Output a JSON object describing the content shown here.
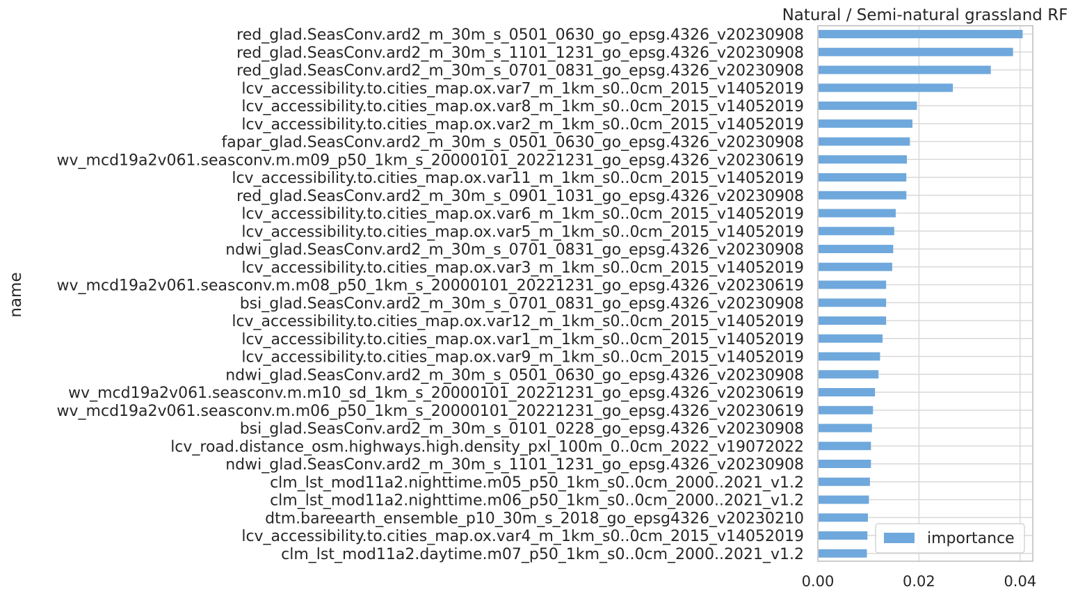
{
  "chart_data": {
    "type": "bar",
    "orientation": "horizontal",
    "title": "Natural / Semi-natural grassland RF",
    "xlabel": "",
    "ylabel": "name",
    "xlim": [
      0,
      0.0425
    ],
    "xticks": [
      "0.00",
      "0.02",
      "0.04"
    ],
    "grid": true,
    "legend_position": "bottom-right",
    "bar_color": "#6fa8dc",
    "series": [
      {
        "name": "importance",
        "categories": [
          "red_glad.SeasConv.ard2_m_30m_s_0501_0630_go_epsg.4326_v20230908",
          "red_glad.SeasConv.ard2_m_30m_s_1101_1231_go_epsg.4326_v20230908",
          "red_glad.SeasConv.ard2_m_30m_s_0701_0831_go_epsg.4326_v20230908",
          "lcv_accessibility.to.cities_map.ox.var7_m_1km_s0..0cm_2015_v14052019",
          "lcv_accessibility.to.cities_map.ox.var8_m_1km_s0..0cm_2015_v14052019",
          "lcv_accessibility.to.cities_map.ox.var2_m_1km_s0..0cm_2015_v14052019",
          "fapar_glad.SeasConv.ard2_m_30m_s_0501_0630_go_epsg.4326_v20230908",
          "wv_mcd19a2v061.seasconv.m.m09_p50_1km_s_20000101_20221231_go_epsg.4326_v20230619",
          "lcv_accessibility.to.cities_map.ox.var11_m_1km_s0..0cm_2015_v14052019",
          "red_glad.SeasConv.ard2_m_30m_s_0901_1031_go_epsg.4326_v20230908",
          "lcv_accessibility.to.cities_map.ox.var6_m_1km_s0..0cm_2015_v14052019",
          "lcv_accessibility.to.cities_map.ox.var5_m_1km_s0..0cm_2015_v14052019",
          "ndwi_glad.SeasConv.ard2_m_30m_s_0701_0831_go_epsg.4326_v20230908",
          "lcv_accessibility.to.cities_map.ox.var3_m_1km_s0..0cm_2015_v14052019",
          "wv_mcd19a2v061.seasconv.m.m08_p50_1km_s_20000101_20221231_go_epsg.4326_v20230619",
          "bsi_glad.SeasConv.ard2_m_30m_s_0701_0831_go_epsg.4326_v20230908",
          "lcv_accessibility.to.cities_map.ox.var12_m_1km_s0..0cm_2015_v14052019",
          "lcv_accessibility.to.cities_map.ox.var1_m_1km_s0..0cm_2015_v14052019",
          "lcv_accessibility.to.cities_map.ox.var9_m_1km_s0..0cm_2015_v14052019",
          "ndwi_glad.SeasConv.ard2_m_30m_s_0501_0630_go_epsg.4326_v20230908",
          "wv_mcd19a2v061.seasconv.m.m10_sd_1km_s_20000101_20221231_go_epsg.4326_v20230619",
          "wv_mcd19a2v061.seasconv.m.m06_p50_1km_s_20000101_20221231_go_epsg.4326_v20230619",
          "bsi_glad.SeasConv.ard2_m_30m_s_0101_0228_go_epsg.4326_v20230908",
          "lcv_road.distance_osm.highways.high.density_pxl_100m_0..0cm_2022_v19072022",
          "ndwi_glad.SeasConv.ard2_m_30m_s_1101_1231_go_epsg.4326_v20230908",
          "clm_lst_mod11a2.nighttime.m05_p50_1km_s0..0cm_2000..2021_v1.2",
          "clm_lst_mod11a2.nighttime.m06_p50_1km_s0..0cm_2000..2021_v1.2",
          "dtm.bareearth_ensemble_p10_30m_s_2018_go_epsg4326_v20230210",
          "lcv_accessibility.to.cities_map.ox.var4_m_1km_s0..0cm_2015_v14052019",
          "clm_lst_mod11a2.daytime.m07_p50_1km_s0..0cm_2000..2021_v1.2"
        ],
        "values": [
          0.0405,
          0.0386,
          0.0342,
          0.0267,
          0.0196,
          0.0187,
          0.0182,
          0.0176,
          0.0175,
          0.0175,
          0.0154,
          0.0151,
          0.0149,
          0.0147,
          0.0135,
          0.0135,
          0.0135,
          0.0128,
          0.0123,
          0.012,
          0.0113,
          0.0109,
          0.0107,
          0.0105,
          0.0105,
          0.0103,
          0.0101,
          0.0099,
          0.0098,
          0.0097
        ]
      }
    ]
  }
}
